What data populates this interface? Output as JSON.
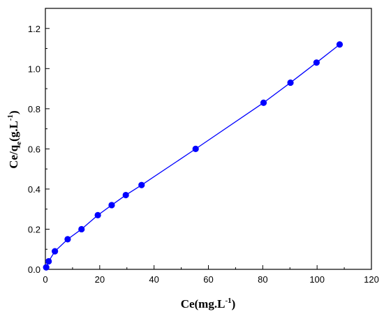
{
  "chart_data": {
    "type": "line",
    "title": "",
    "xlabel": {
      "base": "Ce(mg.L",
      "sup": "-1",
      "tail": ")"
    },
    "ylabel": {
      "base": "Ce/q",
      "sub": "e",
      "mid": "(g.L",
      "sup": "-1",
      "tail": ")"
    },
    "xlim": [
      0,
      120
    ],
    "ylim": [
      0.0,
      1.3
    ],
    "xticks": [
      0,
      20,
      40,
      60,
      80,
      100,
      120
    ],
    "xtick_labels": [
      "0",
      "20",
      "40",
      "60",
      "80",
      "100",
      "120"
    ],
    "yticks": [
      0.0,
      0.2,
      0.4,
      0.6,
      0.8,
      1.0,
      1.2
    ],
    "ytick_labels": [
      "0.0",
      "0.2",
      "0.4",
      "0.6",
      "0.8",
      "1.0",
      "1.2"
    ],
    "grid": false,
    "legend": "none",
    "series": [
      {
        "color": "#0000ff",
        "marker": "circle",
        "x": [
          0.3,
          1.2,
          3.5,
          8.2,
          13.3,
          19.3,
          24.4,
          29.6,
          35.4,
          55.3,
          80.3,
          90.2,
          99.8,
          108.3
        ],
        "y": [
          0.01,
          0.04,
          0.09,
          0.15,
          0.2,
          0.27,
          0.32,
          0.37,
          0.42,
          0.6,
          0.83,
          0.93,
          1.03,
          1.12
        ]
      }
    ]
  }
}
